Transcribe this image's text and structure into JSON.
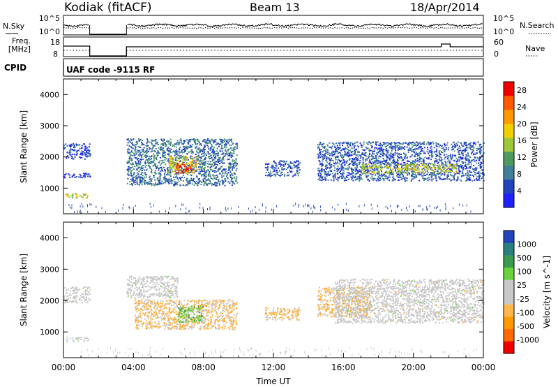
{
  "header": {
    "station": "Kodiak (fitACF)",
    "beam": "Beam 13",
    "date": "18/Apr/2014",
    "cpid_label": "CPID",
    "cpid_text": "UAF code -9115 RF"
  },
  "strips": {
    "nsky_label": "N.Sky",
    "nsearch_label": "N.Search",
    "noise_ticks_left": [
      "10^5",
      "10^0"
    ],
    "noise_ticks_right": [
      "10^5",
      "10^0"
    ],
    "freq_label_line1": "Freq.",
    "freq_label_line2": "[MHz]",
    "freq_ticks": [
      "18",
      "8"
    ],
    "nave_label": "Nave",
    "nave_ticks": [
      "60",
      "0"
    ]
  },
  "colors": {
    "power_scale": [
      "#1f1fff",
      "#2244bb",
      "#3f7f9a",
      "#4f9a5f",
      "#9dc83c",
      "#f0d000",
      "#ff9900",
      "#ff5a00",
      "#ee0000"
    ],
    "velocity_scale": [
      "#ee0000",
      "#ff6a00",
      "#ff9900",
      "#ffb84d",
      "#c8c8c8",
      "#c8c8c8",
      "#6ad23c",
      "#3c9a50",
      "#2a7f7f",
      "#2244bb"
    ]
  },
  "chart_data": [
    {
      "type": "heatmap",
      "name": "power",
      "xlabel": "",
      "ylabel": "Slant Range [km]",
      "yticks": [
        "1000",
        "2000",
        "3000",
        "4000"
      ],
      "xlim_hours": [
        0,
        24
      ],
      "ylim_km": [
        180,
        4500
      ],
      "colorbar": {
        "label": "Power [dB]",
        "ticks": [
          "4",
          "8",
          "12",
          "16",
          "20",
          "24",
          "28"
        ],
        "range": [
          0,
          30
        ]
      },
      "regions": [
        {
          "t0": 0.0,
          "t1": 1.5,
          "r0": 1950,
          "r1": 2450,
          "level": 0.15
        },
        {
          "t0": 0.1,
          "t1": 1.4,
          "r0": 700,
          "r1": 850,
          "level": 0.55
        },
        {
          "t0": 0.0,
          "t1": 1.5,
          "r0": 1350,
          "r1": 1500,
          "level": 0.1
        },
        {
          "t0": 3.6,
          "t1": 9.9,
          "r0": 1100,
          "r1": 2600,
          "level": 0.25
        },
        {
          "t0": 6.0,
          "t1": 7.6,
          "r0": 1500,
          "r1": 2050,
          "level": 0.6
        },
        {
          "t0": 6.4,
          "t1": 7.3,
          "r0": 1500,
          "r1": 1800,
          "level": 0.92
        },
        {
          "t0": 11.5,
          "t1": 13.5,
          "r0": 1400,
          "r1": 1900,
          "level": 0.2
        },
        {
          "t0": 14.5,
          "t1": 24.0,
          "r0": 1250,
          "r1": 2500,
          "level": 0.2
        },
        {
          "t0": 17.0,
          "t1": 22.5,
          "r0": 1500,
          "r1": 1800,
          "level": 0.55
        }
      ]
    },
    {
      "type": "heatmap",
      "name": "velocity",
      "xlabel": "Time UT",
      "ylabel": "Slant Range [km]",
      "xticks": [
        "00:00",
        "04:00",
        "08:00",
        "12:00",
        "16:00",
        "20:00",
        "00:00"
      ],
      "yticks": [
        "1000",
        "2000",
        "3000",
        "4000"
      ],
      "xlim_hours": [
        0,
        24
      ],
      "ylim_km": [
        180,
        4500
      ],
      "colorbar": {
        "label": "Velocity [m s^-1]",
        "ticks": [
          "-1000",
          "-500",
          "-100",
          "-25",
          "25",
          "100",
          "500",
          "1000"
        ],
        "range": [
          -1200,
          1200
        ]
      },
      "regions": [
        {
          "t0": 0.0,
          "t1": 1.5,
          "r0": 1950,
          "r1": 2450,
          "v": 0
        },
        {
          "t0": 0.1,
          "t1": 1.4,
          "r0": 700,
          "r1": 850,
          "v": 0
        },
        {
          "t0": 3.6,
          "t1": 6.5,
          "r0": 2100,
          "r1": 2800,
          "v": 0
        },
        {
          "t0": 4.0,
          "t1": 9.9,
          "r0": 1100,
          "r1": 2050,
          "v": -300
        },
        {
          "t0": 6.5,
          "t1": 8.0,
          "r0": 1300,
          "r1": 1850,
          "v": 400
        },
        {
          "t0": 11.5,
          "t1": 13.5,
          "r0": 1400,
          "r1": 1800,
          "v": -300
        },
        {
          "t0": 14.5,
          "t1": 17.5,
          "r0": 1500,
          "r1": 2450,
          "v": -300
        },
        {
          "t0": 15.5,
          "t1": 24.0,
          "r0": 1300,
          "r1": 2700,
          "v": 0
        }
      ]
    }
  ]
}
